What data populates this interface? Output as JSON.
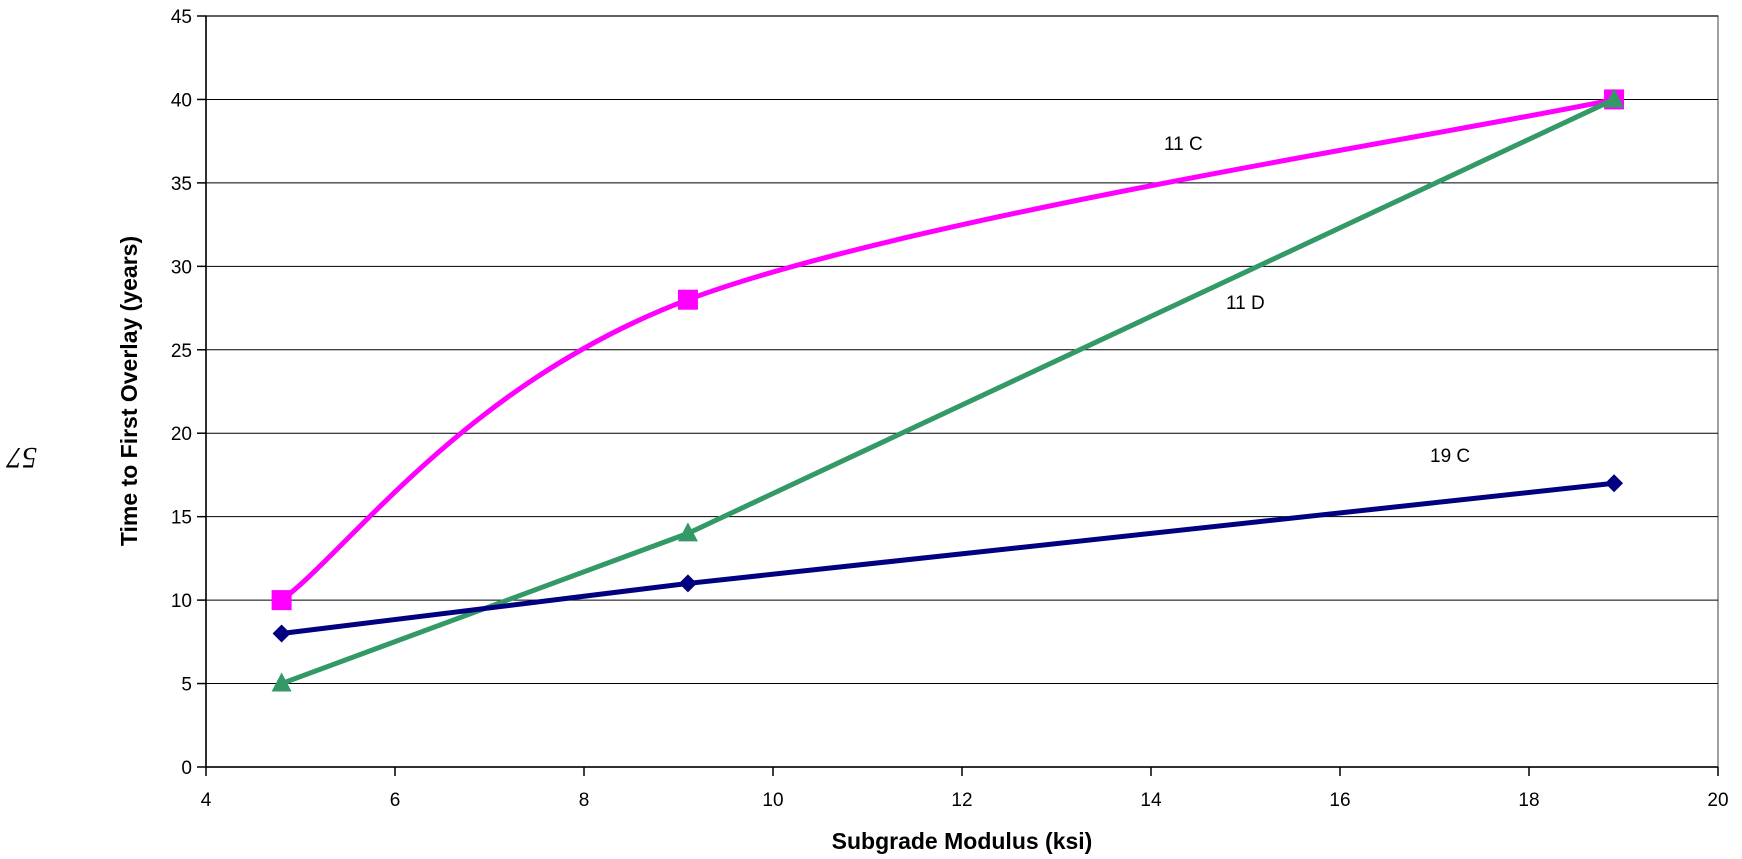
{
  "page_number": "57",
  "chart_data": {
    "type": "line",
    "title": "",
    "xlabel": "Subgrade Modulus (ksi)",
    "ylabel": "Time to First Overlay (years)",
    "xlim": [
      4,
      20
    ],
    "ylim": [
      0,
      45
    ],
    "xticks": [
      4,
      6,
      8,
      10,
      12,
      14,
      16,
      18,
      20
    ],
    "yticks": [
      0,
      5,
      10,
      15,
      20,
      25,
      30,
      35,
      40,
      45
    ],
    "grid": "horizontal major gridlines",
    "legend": "none; series labels placed next to lines",
    "series": [
      {
        "name": "11 C",
        "color": "#ff00ff",
        "marker": "square",
        "smooth": true,
        "x": [
          4.8,
          9.1,
          18.9
        ],
        "y": [
          10,
          28,
          40
        ]
      },
      {
        "name": "11 D",
        "color": "#339966",
        "marker": "triangle",
        "smooth": false,
        "x": [
          4.8,
          9.1,
          18.9
        ],
        "y": [
          5,
          14,
          40
        ]
      },
      {
        "name": "19 C",
        "color": "#000080",
        "marker": "diamond",
        "smooth": false,
        "x": [
          4.8,
          9.1,
          18.9
        ],
        "y": [
          8,
          11,
          17
        ]
      }
    ]
  }
}
